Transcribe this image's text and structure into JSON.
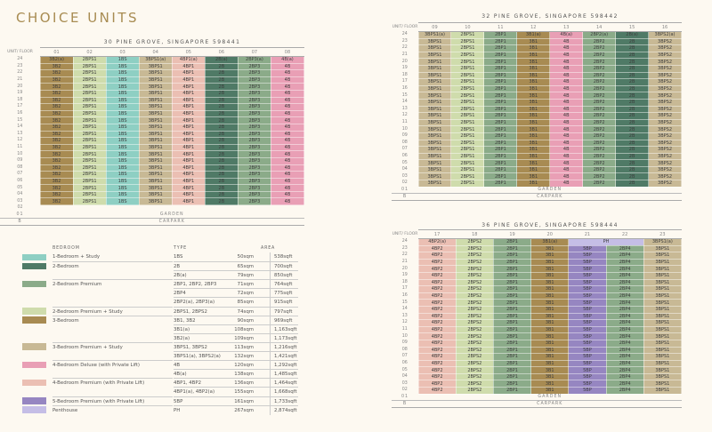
{
  "page_title": "CHOICE UNITS",
  "colors": {
    "1BS": "#8ecfc3",
    "2B": "#4f7a66",
    "2BP": "#8bab89",
    "2BPS": "#cfdcac",
    "3B": "#a88b52",
    "3BPS": "#c8b995",
    "4B": "#e99fb5",
    "4BP": "#ebbfb3",
    "5BP": "#9686c1",
    "PH": "#c5bee6"
  },
  "unit_floor_label": "UNIT/ FLOOR",
  "garden_label": "GARDEN",
  "carpark_label": "CARPARK",
  "blocks": [
    {
      "title": "30 PINE GROVE, SINGAPORE 598441",
      "floors": [
        "24",
        "23",
        "22",
        "21",
        "20",
        "19",
        "18",
        "17",
        "16",
        "15",
        "14",
        "13",
        "12",
        "11",
        "10",
        "09",
        "08",
        "07",
        "06",
        "05",
        "04",
        "03"
      ],
      "empty_floors": [
        "02"
      ],
      "garden_floor": "01",
      "carpark_floor": "B",
      "columns": [
        {
          "unit": "01",
          "top": "3B2(a)",
          "typical": "3B2",
          "cat": "3B"
        },
        {
          "unit": "02",
          "top": "2BPS1",
          "typical": "2BPS1",
          "cat": "2BPS"
        },
        {
          "unit": "03",
          "top": "1BS",
          "typical": "1BS",
          "cat": "1BS"
        },
        {
          "unit": "04",
          "top": "3BPS1(a)",
          "typical": "3BPS1",
          "cat": "3BPS"
        },
        {
          "unit": "05",
          "top": "4BP1(a)",
          "typical": "4BP1",
          "cat": "4BP"
        },
        {
          "unit": "06",
          "top": "2B(a)",
          "typical": "2B",
          "cat": "2B"
        },
        {
          "unit": "07",
          "top": "2BP3(a)",
          "typical": "2BP3",
          "cat": "2BP"
        },
        {
          "unit": "08",
          "top": "4B(a)",
          "typical": "4B",
          "cat": "4B"
        }
      ]
    },
    {
      "title": "32 PINE GROVE, SINGAPORE 598442",
      "floors": [
        "24",
        "23",
        "22",
        "21",
        "20",
        "19",
        "18",
        "17",
        "16",
        "15",
        "14",
        "13",
        "12",
        "11",
        "10",
        "09",
        "08",
        "07",
        "06",
        "05",
        "04",
        "03",
        "02"
      ],
      "empty_floors": [],
      "garden_floor": "01",
      "carpark_floor": "B",
      "columns": [
        {
          "unit": "09",
          "top": "3BPS1(a)",
          "typical": "3BPS1",
          "cat": "3BPS"
        },
        {
          "unit": "10",
          "top": "2BPS1",
          "typical": "2BPS1",
          "cat": "2BPS"
        },
        {
          "unit": "11",
          "top": "2BP1",
          "typical": "2BP1",
          "cat": "2BP"
        },
        {
          "unit": "12",
          "top": "3B1(a)",
          "typical": "3B1",
          "cat": "3B"
        },
        {
          "unit": "13",
          "top": "4B(a)",
          "typical": "4B",
          "cat": "4B"
        },
        {
          "unit": "14",
          "top": "2BP2(a)",
          "typical": "2BP2",
          "cat": "2BP"
        },
        {
          "unit": "15",
          "top": "2B(a)",
          "typical": "2B",
          "cat": "2B"
        },
        {
          "unit": "16",
          "top": "3BPS2(a)",
          "typical": "3BPS2",
          "cat": "3BPS"
        }
      ]
    },
    {
      "title": "36 PINE GROVE, SINGAPORE 598444",
      "floors": [
        "24",
        "23",
        "22",
        "21",
        "20",
        "19",
        "18",
        "17",
        "16",
        "15",
        "14",
        "13",
        "12",
        "11",
        "10",
        "09",
        "08",
        "07",
        "06",
        "05",
        "04",
        "03",
        "02"
      ],
      "empty_floors": [],
      "garden_floor": "01",
      "carpark_floor": "B",
      "columns": [
        {
          "unit": "17",
          "top": "4BP2(a)",
          "typical": "4BP2",
          "cat": "4BP"
        },
        {
          "unit": "18",
          "top": "2BPS2",
          "typical": "2BPS2",
          "cat": "2BPS"
        },
        {
          "unit": "19",
          "top": "2BP1",
          "typical": "2BP1",
          "cat": "2BP"
        },
        {
          "unit": "20",
          "top": "3B1(a)",
          "typical": "3B1",
          "cat": "3B"
        },
        {
          "unit": "21",
          "top": "PH",
          "top_cat": "PH",
          "top_span": 2,
          "typical": "5BP",
          "cat": "5BP"
        },
        {
          "unit": "22",
          "top": null,
          "typical": "2BP4",
          "cat": "2BP"
        },
        {
          "unit": "23",
          "top": "3BPS1(a)",
          "typical": "3BPS1",
          "cat": "3BPS"
        }
      ]
    }
  ],
  "legend": {
    "headers": {
      "bedroom": "BEDROOM",
      "type": "TYPE",
      "area": "AREA"
    },
    "rows": [
      {
        "cat": "1BS",
        "label": "1-Bedroom + Study",
        "type": "1BS",
        "sqm": "50sqm",
        "sqft": "538sqft"
      },
      {
        "cat": "2B",
        "label": "2-Bedroom",
        "type": "2B",
        "sqm": "65sqm",
        "sqft": "700sqft"
      },
      {
        "type": "2B(a)",
        "sqm": "79sqm",
        "sqft": "850sqft"
      },
      {
        "cat": "2BP",
        "label": "2-Bedroom Premium",
        "type": "2BP1, 2BP2, 2BP3",
        "sqm": "71sqm",
        "sqft": "764sqft"
      },
      {
        "type": "2BP4",
        "sqm": "72sqm",
        "sqft": "775sqft"
      },
      {
        "type": "2BP2(a), 2BP3(a)",
        "sqm": "85sqm",
        "sqft": "915sqft"
      },
      {
        "cat": "2BPS",
        "label": "2-Bedroom Premium + Study",
        "type": "2BPS1, 2BPS2",
        "sqm": "74sqm",
        "sqft": "797sqft"
      },
      {
        "cat": "3B",
        "label": "3-Bedroom",
        "type": "3B1, 3B2",
        "sqm": "90sqm",
        "sqft": "969sqft"
      },
      {
        "type": "3B1(a)",
        "sqm": "108sqm",
        "sqft": "1,163sqft"
      },
      {
        "type": "3B2(a)",
        "sqm": "109sqm",
        "sqft": "1,173sqft"
      },
      {
        "cat": "3BPS",
        "label": "3-Bedroom Premium + Study",
        "type": "3BPS1, 3BPS2",
        "sqm": "113sqm",
        "sqft": "1,216sqft"
      },
      {
        "type": "3BPS1(a), 3BPS2(a)",
        "sqm": "132sqm",
        "sqft": "1,421sqft"
      },
      {
        "cat": "4B",
        "label": "4-Bedroom Deluxe (with Private Lift)",
        "type": "4B",
        "sqm": "120sqm",
        "sqft": "1,292sqft"
      },
      {
        "type": "4B(a)",
        "sqm": "138sqm",
        "sqft": "1,485sqft"
      },
      {
        "cat": "4BP",
        "label": "4-Bedroom Premium (with Private Lift)",
        "type": "4BP1, 4BP2",
        "sqm": "136sqm",
        "sqft": "1,464sqft"
      },
      {
        "type": "4BP1(a), 4BP2(a)",
        "sqm": "155sqm",
        "sqft": "1,668sqft"
      },
      {
        "cat": "5BP",
        "label": "5-Bedroom Premium (with Private Lift)",
        "type": "5BP",
        "sqm": "161sqm",
        "sqft": "1,733sqft"
      },
      {
        "cat": "PH",
        "label": "Penthouse",
        "type": "PH",
        "sqm": "267sqm",
        "sqft": "2,874sqft"
      }
    ]
  }
}
